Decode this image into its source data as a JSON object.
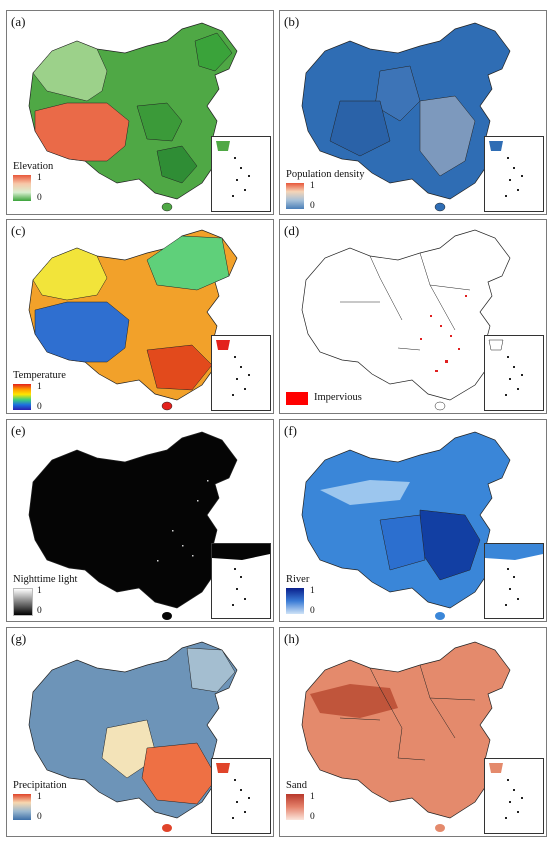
{
  "panels": [
    {
      "label": "(a)",
      "legend": "Elevation",
      "max": "1",
      "min": "0",
      "grad": "linear-gradient(to bottom,#e8573a,#f7c7a8,#d9efd0,#3aa33a)",
      "fill": "#5fb14a",
      "fill2": "#e9785a"
    },
    {
      "label": "(b)",
      "legend": "Population density",
      "max": "1",
      "min": "0",
      "grad": "linear-gradient(to bottom,#e8573a,#f5d5b8,#a6c0d8,#4a7fb8)",
      "fill": "#2f6db4",
      "fill2": "#8aa8c9"
    },
    {
      "label": "(c)",
      "legend": "Temperature",
      "max": "1",
      "min": "0",
      "grad": "linear-gradient(to bottom,#e3211c,#ff9a00,#ffe600,#3fd07a,#1c6fe0,#2a1fb0)",
      "fill": "#f2a12a",
      "fill2": "#3d7fd6"
    },
    {
      "label": "(d)",
      "legend": "Impervious",
      "fill": "#ffffff",
      "fill2": "#ffffff"
    },
    {
      "label": "(e)",
      "legend": "Nighttime light",
      "max": "1",
      "min": "0",
      "grad": "linear-gradient(to bottom,#ffffff,#808080,#000000)",
      "fill": "#050505",
      "fill2": "#050505"
    },
    {
      "label": "(f)",
      "legend": "River",
      "max": "1",
      "min": "0",
      "grad": "linear-gradient(to bottom,#0a1f8c,#3a7bd5,#cfe3f7)",
      "fill": "#3a86d8",
      "fill2": "#123fa3"
    },
    {
      "label": "(g)",
      "legend": "Precipitation",
      "max": "1",
      "min": "0",
      "grad": "linear-gradient(to bottom,#e0442a,#f7d8b0,#9ab8cf,#3d6fa8)",
      "fill": "#6d94b8",
      "fill2": "#f07a4a"
    },
    {
      "label": "(h)",
      "legend": "Sand",
      "max": "1",
      "min": "0",
      "grad": "linear-gradient(to bottom,#b8382a,#e5826b,#fbe6dc)",
      "fill": "#e48a6c",
      "fill2": "#c35a3e"
    }
  ]
}
